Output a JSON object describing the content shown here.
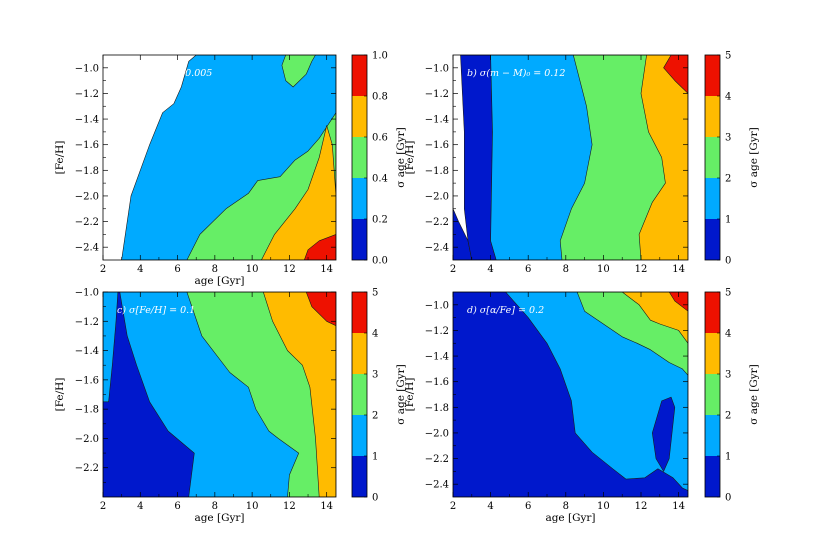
{
  "colors": {
    "level0": "#0018cc",
    "level1": "#00aaff",
    "level2": "#66ee66",
    "level3": "#ffbb00",
    "level4": "#ee1100",
    "line": "#1a1a1a"
  },
  "chart_data": [
    {
      "type": "contour",
      "panel": "a",
      "annotation": "a) σ(B − V) = 0.005",
      "xlabel": "age [Gyr]",
      "ylabel": "[Fe/H]",
      "xlim": [
        2,
        14.5
      ],
      "ylim": [
        -2.5,
        -0.9
      ],
      "xticks": [
        "2",
        "4",
        "6",
        "8",
        "10",
        "12",
        "14"
      ],
      "yticks": [
        "−1.0",
        "−1.2",
        "−1.4",
        "−1.6",
        "−1.8",
        "−2.0",
        "−2.2",
        "−2.4"
      ],
      "colorbar": {
        "label": "σ age [Gyr]",
        "ticks": [
          "0.0",
          "0.2",
          "0.4",
          "0.6",
          "0.8",
          "1.0"
        ],
        "range": [
          0,
          1
        ],
        "levels": [
          0,
          0.2,
          0.4,
          0.6,
          0.8,
          1.0
        ]
      },
      "regions": [
        {
          "level": 1,
          "points": [
            [
              3.0,
              -2.5
            ],
            [
              3.5,
              -2.0
            ],
            [
              4.5,
              -1.6
            ],
            [
              5.2,
              -1.35
            ],
            [
              5.8,
              -1.28
            ],
            [
              6.2,
              -1.15
            ],
            [
              6.6,
              -0.95
            ],
            [
              7.0,
              -0.9
            ],
            [
              14.5,
              -0.9
            ],
            [
              14.5,
              -2.5
            ]
          ]
        },
        {
          "level": 2,
          "points": [
            [
              6.5,
              -2.5
            ],
            [
              7.2,
              -2.3
            ],
            [
              8.6,
              -2.1
            ],
            [
              9.8,
              -1.98
            ],
            [
              10.3,
              -1.88
            ],
            [
              11.5,
              -1.85
            ],
            [
              12.3,
              -1.72
            ],
            [
              13.0,
              -1.65
            ],
            [
              13.6,
              -1.55
            ],
            [
              14.5,
              -1.35
            ],
            [
              14.5,
              -2.5
            ]
          ]
        },
        {
          "level": 2,
          "points": [
            [
              11.8,
              -0.9
            ],
            [
              11.6,
              -0.98
            ],
            [
              11.8,
              -1.1
            ],
            [
              12.2,
              -1.15
            ],
            [
              12.9,
              -1.05
            ],
            [
              13.2,
              -0.95
            ],
            [
              13.4,
              -0.9
            ]
          ]
        },
        {
          "level": 3,
          "points": [
            [
              10.5,
              -2.5
            ],
            [
              11.2,
              -2.3
            ],
            [
              12.3,
              -2.1
            ],
            [
              13.0,
              -1.95
            ],
            [
              13.6,
              -1.7
            ],
            [
              14.0,
              -1.45
            ],
            [
              14.3,
              -1.6
            ],
            [
              14.5,
              -2.0
            ],
            [
              14.5,
              -2.5
            ]
          ]
        },
        {
          "level": 4,
          "points": [
            [
              12.8,
              -2.5
            ],
            [
              13.0,
              -2.42
            ],
            [
              13.6,
              -2.35
            ],
            [
              14.5,
              -2.3
            ],
            [
              14.5,
              -2.5
            ]
          ]
        }
      ]
    },
    {
      "type": "contour",
      "panel": "b",
      "annotation": "b) σ(m − M)₀ = 0.12",
      "xlabel": "",
      "ylabel": "[Fe/H]",
      "xlim": [
        2,
        14.5
      ],
      "ylim": [
        -2.5,
        -0.9
      ],
      "xticks": [
        "2",
        "4",
        "6",
        "8",
        "10",
        "12",
        "14"
      ],
      "yticks": [
        "−1.0",
        "−1.2",
        "−1.4",
        "−1.6",
        "−1.8",
        "−2.0",
        "−2.2",
        "−2.4"
      ],
      "colorbar": {
        "label": "σ age [Gyr]",
        "ticks": [
          "0",
          "1",
          "2",
          "3",
          "4",
          "5"
        ],
        "range": [
          0,
          5
        ],
        "levels": [
          0,
          1,
          2,
          3,
          4,
          5
        ]
      },
      "regions": [
        {
          "level": 0,
          "points": [
            [
              2.0,
              -0.9
            ],
            [
              2.0,
              -2.1
            ],
            [
              2.3,
              -2.2
            ],
            [
              2.8,
              -2.35
            ],
            [
              3.0,
              -2.5
            ],
            [
              2.0,
              -2.5
            ]
          ]
        },
        {
          "level": 0,
          "points": [
            [
              2.4,
              -0.9
            ],
            [
              2.6,
              -1.5
            ],
            [
              2.6,
              -1.9
            ],
            [
              2.6,
              -2.1
            ],
            [
              2.8,
              -2.35
            ],
            [
              3.0,
              -2.5
            ],
            [
              4.3,
              -2.5
            ],
            [
              4.0,
              -2.35
            ],
            [
              4.1,
              -1.5
            ],
            [
              4.0,
              -0.9
            ]
          ]
        },
        {
          "level": 1,
          "points": [
            [
              4.0,
              -0.9
            ],
            [
              4.1,
              -1.5
            ],
            [
              4.0,
              -2.35
            ],
            [
              4.3,
              -2.5
            ],
            [
              14.5,
              -2.5
            ],
            [
              14.5,
              -0.9
            ]
          ]
        },
        {
          "level": 2,
          "points": [
            [
              8.4,
              -0.9
            ],
            [
              9.1,
              -1.3
            ],
            [
              9.4,
              -1.6
            ],
            [
              9.0,
              -1.9
            ],
            [
              8.3,
              -2.1
            ],
            [
              7.7,
              -2.35
            ],
            [
              7.8,
              -2.5
            ],
            [
              14.5,
              -2.5
            ],
            [
              14.5,
              -0.9
            ]
          ]
        },
        {
          "level": 3,
          "points": [
            [
              12.3,
              -0.9
            ],
            [
              12.0,
              -1.2
            ],
            [
              12.4,
              -1.5
            ],
            [
              13.1,
              -1.7
            ],
            [
              13.3,
              -1.9
            ],
            [
              12.6,
              -2.05
            ],
            [
              11.9,
              -2.3
            ],
            [
              12.0,
              -2.5
            ],
            [
              14.5,
              -2.5
            ],
            [
              14.5,
              -0.9
            ]
          ]
        },
        {
          "level": 4,
          "points": [
            [
              13.6,
              -0.9
            ],
            [
              13.2,
              -1.0
            ],
            [
              13.8,
              -1.1
            ],
            [
              14.5,
              -1.2
            ],
            [
              14.5,
              -0.9
            ]
          ]
        }
      ]
    },
    {
      "type": "contour",
      "panel": "c",
      "annotation": "c) σ[Fe/H] = 0.1",
      "xlabel": "age [Gyr]",
      "ylabel": "[Fe/H]",
      "xlim": [
        2,
        14.5
      ],
      "ylim": [
        -2.4,
        -1.0
      ],
      "xticks": [
        "2",
        "4",
        "6",
        "8",
        "10",
        "12",
        "14"
      ],
      "yticks": [
        "−1.0",
        "−1.2",
        "−1.4",
        "−1.6",
        "−1.8",
        "−2.0",
        "−2.2"
      ],
      "colorbar": {
        "label": "σ age [Gyr]",
        "ticks": [
          "0",
          "1",
          "2",
          "3",
          "4",
          "5"
        ],
        "range": [
          0,
          5
        ],
        "levels": [
          0,
          1,
          2,
          3,
          4,
          5
        ]
      },
      "regions": [
        {
          "level": 0,
          "points": [
            [
              2.0,
              -1.0
            ],
            [
              2.0,
              -2.4
            ],
            [
              14.5,
              -2.4
            ],
            [
              14.5,
              -1.0
            ]
          ]
        },
        {
          "level": 1,
          "points": [
            [
              2.0,
              -1.0
            ],
            [
              2.0,
              -1.75
            ],
            [
              2.3,
              -1.75
            ],
            [
              2.5,
              -1.5
            ],
            [
              2.7,
              -1.2
            ],
            [
              2.8,
              -1.0
            ]
          ]
        },
        {
          "level": 1,
          "points": [
            [
              2.9,
              -1.0
            ],
            [
              3.3,
              -1.3
            ],
            [
              3.8,
              -1.5
            ],
            [
              4.5,
              -1.75
            ],
            [
              5.5,
              -1.95
            ],
            [
              6.9,
              -2.1
            ],
            [
              6.6,
              -2.4
            ],
            [
              14.5,
              -2.4
            ],
            [
              14.5,
              -1.0
            ]
          ]
        },
        {
          "level": 2,
          "points": [
            [
              6.5,
              -1.0
            ],
            [
              7.3,
              -1.3
            ],
            [
              8.8,
              -1.55
            ],
            [
              9.8,
              -1.65
            ],
            [
              10.2,
              -1.8
            ],
            [
              10.9,
              -1.95
            ],
            [
              11.4,
              -2.0
            ],
            [
              12.5,
              -2.1
            ],
            [
              12.0,
              -2.25
            ],
            [
              11.9,
              -2.4
            ],
            [
              14.5,
              -2.4
            ],
            [
              14.5,
              -1.0
            ]
          ]
        },
        {
          "level": 3,
          "points": [
            [
              10.6,
              -1.0
            ],
            [
              11.1,
              -1.2
            ],
            [
              11.9,
              -1.4
            ],
            [
              12.7,
              -1.5
            ],
            [
              13.1,
              -1.65
            ],
            [
              13.4,
              -2.0
            ],
            [
              13.6,
              -2.4
            ],
            [
              14.5,
              -2.4
            ],
            [
              14.5,
              -1.0
            ]
          ]
        },
        {
          "level": 4,
          "points": [
            [
              12.9,
              -1.0
            ],
            [
              13.2,
              -1.1
            ],
            [
              14.0,
              -1.2
            ],
            [
              14.5,
              -1.23
            ],
            [
              14.5,
              -1.0
            ]
          ]
        }
      ]
    },
    {
      "type": "contour",
      "panel": "d",
      "annotation": "d) σ[α/Fe] = 0.2",
      "xlabel": "age [Gyr]",
      "ylabel": "[Fe/H]",
      "xlim": [
        2,
        14.5
      ],
      "ylim": [
        -2.5,
        -0.9
      ],
      "xticks": [
        "2",
        "4",
        "6",
        "8",
        "10",
        "12",
        "14"
      ],
      "yticks": [
        "−1.0",
        "−1.2",
        "−1.4",
        "−1.6",
        "−1.8",
        "−2.0",
        "−2.2",
        "−2.4"
      ],
      "colorbar": {
        "label": "σ age [Gyr]",
        "ticks": [
          "0",
          "1",
          "2",
          "3",
          "4",
          "5"
        ],
        "range": [
          0,
          5
        ],
        "levels": [
          0,
          1,
          2,
          3,
          4,
          5
        ]
      },
      "regions": [
        {
          "level": 0,
          "points": [
            [
              2.0,
              -0.9
            ],
            [
              2.0,
              -2.5
            ],
            [
              14.5,
              -2.5
            ],
            [
              14.5,
              -0.9
            ]
          ]
        },
        {
          "level": 1,
          "points": [
            [
              4.8,
              -0.9
            ],
            [
              6.0,
              -1.1
            ],
            [
              7.0,
              -1.3
            ],
            [
              7.7,
              -1.5
            ],
            [
              8.3,
              -1.75
            ],
            [
              8.5,
              -2.0
            ],
            [
              9.4,
              -2.15
            ],
            [
              10.5,
              -2.28
            ],
            [
              11.2,
              -2.36
            ],
            [
              12.2,
              -2.35
            ],
            [
              12.9,
              -2.28
            ],
            [
              13.7,
              -2.35
            ],
            [
              14.2,
              -2.43
            ],
            [
              14.5,
              -2.45
            ],
            [
              14.5,
              -0.9
            ]
          ]
        },
        {
          "level": 0,
          "points": [
            [
              13.1,
              -1.75
            ],
            [
              13.6,
              -1.72
            ],
            [
              13.8,
              -1.8
            ],
            [
              13.5,
              -2.2
            ],
            [
              13.2,
              -2.3
            ],
            [
              12.8,
              -2.2
            ],
            [
              12.6,
              -2.0
            ]
          ]
        },
        {
          "level": 2,
          "points": [
            [
              8.6,
              -0.9
            ],
            [
              9.0,
              -1.05
            ],
            [
              10.0,
              -1.15
            ],
            [
              11.0,
              -1.25
            ],
            [
              11.8,
              -1.3
            ],
            [
              12.5,
              -1.35
            ],
            [
              13.5,
              -1.45
            ],
            [
              14.2,
              -1.5
            ],
            [
              14.5,
              -1.55
            ],
            [
              14.5,
              -0.9
            ]
          ]
        },
        {
          "level": 3,
          "points": [
            [
              11.0,
              -0.9
            ],
            [
              11.9,
              -1.0
            ],
            [
              12.5,
              -1.12
            ],
            [
              13.0,
              -1.15
            ],
            [
              14.0,
              -1.2
            ],
            [
              14.5,
              -1.3
            ],
            [
              14.5,
              -0.9
            ]
          ]
        },
        {
          "level": 4,
          "points": [
            [
              13.5,
              -0.9
            ],
            [
              13.8,
              -0.97
            ],
            [
              14.5,
              -1.05
            ],
            [
              14.5,
              -0.9
            ]
          ]
        }
      ]
    }
  ]
}
